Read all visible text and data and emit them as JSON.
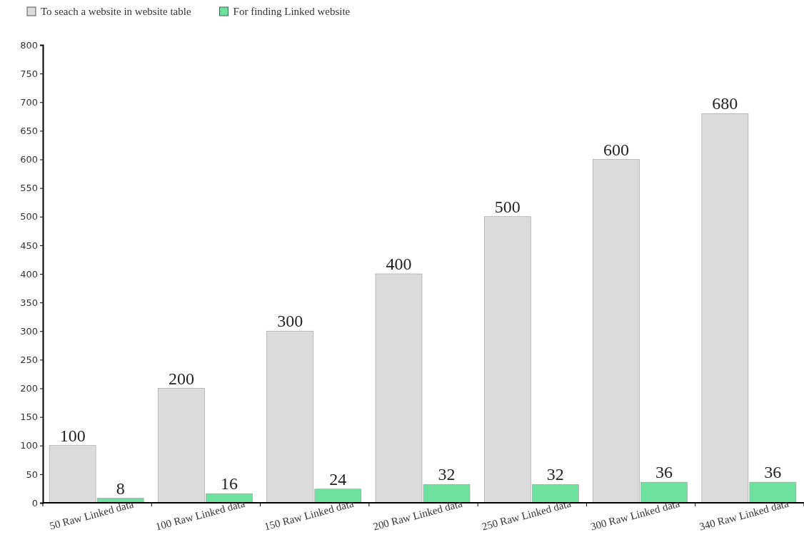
{
  "chart_data": {
    "type": "bar",
    "categories": [
      "50 Raw Linked data",
      "100 Raw Linked data",
      "150 Raw Linked data",
      "200 Raw Linked data",
      "250 Raw Linked data",
      "300 Raw Linked data",
      "340 Raw Linked data"
    ],
    "series": [
      {
        "name": "To seach a website in website table",
        "color": "#dcdcdc",
        "values": [
          100,
          200,
          300,
          400,
          500,
          600,
          680
        ]
      },
      {
        "name": "For finding Linked website",
        "color": "#6ee0a0",
        "values": [
          8,
          16,
          24,
          32,
          32,
          36,
          36
        ]
      }
    ],
    "ylim": [
      0,
      800
    ],
    "yticks": [
      0,
      50,
      100,
      150,
      200,
      250,
      300,
      350,
      400,
      450,
      500,
      550,
      600,
      650,
      700,
      750,
      800
    ],
    "data_labels": true,
    "legend": "top left"
  }
}
